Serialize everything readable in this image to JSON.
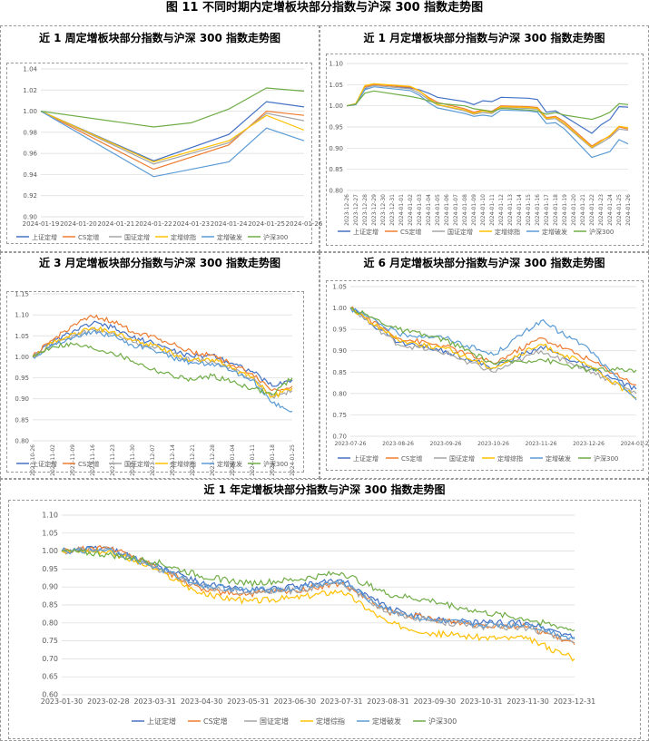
{
  "figure_title": "图 11  不同时期内定增板块部分指数与沪深 300 指数走势图",
  "colors": {
    "上证定增": "#4472C4",
    "CS定增": "#ED7D31",
    "国证定增": "#A5A5A5",
    "定增综指": "#FFC000",
    "定增破发": "#5B9BD5",
    "沪深300": "#70AD47",
    "grid": "#D9D9D9",
    "axis": "#595959"
  },
  "chart_data": [
    {
      "type": "line",
      "title": "近 1 周定增板块部分指数与沪深 300 指数走势图",
      "categories": [
        "2024-01-19",
        "2024-01-20",
        "2024-01-21",
        "2024-01-22",
        "2024-01-23",
        "2024-01-24",
        "2024-01-25",
        "2024-01-26"
      ],
      "ylim": [
        0.9,
        1.04
      ],
      "yticks": [
        "0.90",
        "0.92",
        "0.94",
        "0.96",
        "0.98",
        "1.00",
        "1.02",
        "1.04"
      ],
      "legend": [
        "上证定增",
        "CS定增",
        "国证定增",
        "定增综指",
        "定增破发",
        "沪深300"
      ],
      "series": [
        {
          "name": "上证定增",
          "values": [
            1.0,
            null,
            null,
            0.953,
            null,
            0.978,
            1.009,
            1.004
          ]
        },
        {
          "name": "CS定增",
          "values": [
            1.0,
            null,
            null,
            0.945,
            null,
            0.968,
            1.0,
            0.996
          ]
        },
        {
          "name": "国证定增",
          "values": [
            1.0,
            null,
            null,
            0.95,
            null,
            0.97,
            0.998,
            0.991
          ]
        },
        {
          "name": "定增综指",
          "values": [
            1.0,
            null,
            null,
            0.952,
            null,
            0.972,
            0.996,
            0.982
          ]
        },
        {
          "name": "定增破发",
          "values": [
            1.0,
            null,
            null,
            0.938,
            null,
            0.952,
            0.984,
            0.972
          ]
        },
        {
          "name": "沪深300",
          "values": [
            1.0,
            null,
            null,
            0.985,
            0.989,
            1.002,
            1.022,
            1.019
          ]
        }
      ]
    },
    {
      "type": "line",
      "title": "近 1 月定增板块部分指数与沪深 300 指数走势图",
      "categories": [
        "2023-12-26",
        "2023-12-27",
        "2023-12-28",
        "2023-12-29",
        "2023-12-30",
        "2023-12-31",
        "2024-01-01",
        "2024-01-02",
        "2024-01-03",
        "2024-01-04",
        "2024-01-05",
        "2024-01-06",
        "2024-01-07",
        "2024-01-08",
        "2024-01-09",
        "2024-01-10",
        "2024-01-11",
        "2024-01-12",
        "2024-01-13",
        "2024-01-14",
        "2024-01-15",
        "2024-01-16",
        "2024-01-17",
        "2024-01-18",
        "2024-01-19",
        "2024-01-20",
        "2024-01-21",
        "2024-01-22",
        "2024-01-23",
        "2024-01-24",
        "2024-01-25",
        "2024-01-26"
      ],
      "ylim": [
        0.8,
        1.1
      ],
      "yticks": [
        "0.80",
        "0.85",
        "0.90",
        "0.95",
        "1.00",
        "1.05",
        "1.10"
      ],
      "legend": [
        "上证定增",
        "CS定增",
        "国证定增",
        "定增综指",
        "定增破发",
        "沪深300"
      ],
      "series": [
        {
          "name": "上证定增",
          "values": [
            1.0,
            1.003,
            1.04,
            1.052,
            null,
            null,
            null,
            1.042,
            1.038,
            1.03,
            1.02,
            null,
            null,
            1.01,
            1.003,
            1.012,
            1.01,
            1.02,
            null,
            null,
            1.018,
            1.015,
            0.985,
            0.988,
            0.975,
            null,
            null,
            0.935,
            0.955,
            0.968,
            0.998,
            0.997
          ]
        },
        {
          "name": "CS定增",
          "values": [
            1.0,
            1.005,
            1.045,
            1.05,
            null,
            null,
            null,
            1.044,
            1.035,
            1.02,
            1.008,
            null,
            null,
            0.993,
            0.985,
            0.99,
            0.987,
            1.0,
            null,
            null,
            0.998,
            0.996,
            0.972,
            0.975,
            0.962,
            null,
            null,
            0.905,
            0.918,
            0.928,
            0.95,
            0.945
          ]
        },
        {
          "name": "国证定增",
          "values": [
            1.0,
            1.004,
            1.042,
            1.048,
            null,
            null,
            null,
            1.04,
            1.03,
            1.015,
            1.002,
            null,
            null,
            0.988,
            0.98,
            0.984,
            0.982,
            0.996,
            null,
            null,
            0.994,
            0.992,
            0.968,
            0.97,
            0.955,
            null,
            null,
            0.9,
            0.912,
            0.925,
            0.945,
            0.942
          ]
        },
        {
          "name": "定增综指",
          "values": [
            1.0,
            1.005,
            1.048,
            1.052,
            null,
            null,
            null,
            1.046,
            1.036,
            1.018,
            1.003,
            null,
            null,
            0.99,
            0.982,
            0.988,
            0.984,
            0.998,
            null,
            null,
            0.996,
            0.994,
            0.97,
            0.973,
            0.958,
            null,
            null,
            0.902,
            0.916,
            0.93,
            0.952,
            0.948
          ]
        },
        {
          "name": "定增破发",
          "values": [
            1.0,
            1.003,
            1.038,
            1.045,
            null,
            null,
            null,
            1.036,
            1.025,
            1.008,
            0.995,
            null,
            null,
            0.982,
            0.975,
            0.978,
            0.975,
            0.99,
            null,
            null,
            0.988,
            0.985,
            0.958,
            0.96,
            0.945,
            null,
            null,
            0.878,
            0.885,
            0.892,
            0.92,
            0.91
          ]
        },
        {
          "name": "沪深300",
          "values": [
            1.0,
            1.004,
            1.03,
            1.035,
            null,
            null,
            null,
            1.022,
            1.018,
            1.012,
            1.006,
            null,
            null,
            1.0,
            0.993,
            0.99,
            0.986,
            0.994,
            null,
            null,
            0.99,
            0.988,
            0.98,
            0.984,
            0.978,
            null,
            null,
            0.968,
            0.975,
            0.985,
            1.005,
            1.003
          ]
        }
      ]
    },
    {
      "type": "line",
      "title": "近 3 月定增板块部分指数与沪深 300 指数走势图",
      "categories": [
        "2023-10-26",
        "2023-11-02",
        "2023-11-09",
        "2023-11-16",
        "2023-11-23",
        "2023-11-30",
        "2023-12-07",
        "2023-12-14",
        "2023-12-21",
        "2023-12-28",
        "2024-01-04",
        "2024-01-11",
        "2024-01-18",
        "2024-01-25"
      ],
      "ylim": [
        0.8,
        1.15
      ],
      "yticks": [
        "0.80",
        "0.85",
        "0.90",
        "0.95",
        "1.00",
        "1.05",
        "1.10",
        "1.15"
      ],
      "legend": [
        "上证定增",
        "CS定增",
        "国证定增",
        "定增综指",
        "定增破发",
        "沪深300"
      ],
      "series": [
        {
          "name": "上证定增",
          "values": [
            1.0,
            1.035,
            1.06,
            1.08,
            1.07,
            1.045,
            1.035,
            1.015,
            1.0,
            1.005,
            0.985,
            0.965,
            0.93,
            0.945
          ]
        },
        {
          "name": "CS定增",
          "values": [
            1.0,
            1.04,
            1.075,
            1.095,
            1.085,
            1.06,
            1.05,
            1.03,
            1.01,
            1.005,
            0.98,
            0.96,
            0.92,
            0.93
          ]
        },
        {
          "name": "国证定增",
          "values": [
            1.0,
            1.03,
            1.05,
            1.065,
            1.058,
            1.035,
            1.025,
            1.005,
            0.99,
            0.99,
            0.97,
            0.95,
            0.905,
            0.92
          ]
        },
        {
          "name": "定增综指",
          "values": [
            1.0,
            1.032,
            1.055,
            1.07,
            1.06,
            1.038,
            1.028,
            1.008,
            0.992,
            0.994,
            0.972,
            0.952,
            0.905,
            0.925
          ]
        },
        {
          "name": "定增破发",
          "values": [
            1.0,
            1.028,
            1.045,
            1.06,
            1.05,
            1.028,
            1.018,
            0.998,
            0.985,
            0.985,
            0.965,
            0.945,
            0.89,
            0.87
          ]
        },
        {
          "name": "沪深300",
          "values": [
            1.0,
            1.025,
            1.03,
            1.02,
            1.01,
            0.99,
            0.97,
            0.955,
            0.945,
            0.955,
            0.94,
            0.925,
            0.91,
            0.95
          ]
        }
      ]
    },
    {
      "type": "line",
      "title": "近 6 月定增板块部分指数与沪深 300 指数走势图",
      "categories": [
        "2023-07-26",
        "2023-08-26",
        "2023-09-26",
        "2023-10-26",
        "2023-11-26",
        "2023-12-26",
        "2024-01-26"
      ],
      "ylim": [
        0.7,
        1.05
      ],
      "yticks": [
        "0.70",
        "0.75",
        "0.80",
        "0.85",
        "0.90",
        "0.95",
        "1.00",
        "1.05"
      ],
      "legend": [
        "上证定增",
        "CS定增",
        "国证定增",
        "定增综指",
        "定增破发",
        "沪深300"
      ],
      "series": [
        {
          "name": "上证定增",
          "values": [
            1.0,
            0.92,
            0.9,
            0.86,
            0.91,
            0.86,
            0.81
          ]
        },
        {
          "name": "CS定增",
          "values": [
            1.0,
            0.93,
            0.91,
            0.87,
            0.93,
            0.88,
            0.82
          ]
        },
        {
          "name": "国证定增",
          "values": [
            1.0,
            0.915,
            0.895,
            0.85,
            0.9,
            0.855,
            0.8
          ]
        },
        {
          "name": "定增综指",
          "values": [
            1.0,
            0.925,
            0.905,
            0.86,
            0.915,
            0.865,
            0.79
          ]
        },
        {
          "name": "定增破发",
          "values": [
            1.0,
            0.94,
            0.93,
            0.89,
            0.97,
            0.905,
            0.785
          ]
        },
        {
          "name": "沪深300",
          "values": [
            1.0,
            0.95,
            0.925,
            0.87,
            0.88,
            0.855,
            0.855
          ]
        }
      ]
    },
    {
      "type": "line",
      "title": "近 1 年定增板块部分指数与沪深 300 指数走势图",
      "categories": [
        "2023-01-30",
        "2023-02-28",
        "2023-03-31",
        "2023-04-30",
        "2023-05-31",
        "2023-06-30",
        "2023-07-31",
        "2023-08-31",
        "2023-09-30",
        "2023-10-31",
        "2023-11-30",
        "2023-12-31"
      ],
      "ylim": [
        0.6,
        1.1
      ],
      "yticks": [
        "0.60",
        "0.65",
        "0.70",
        "0.75",
        "0.80",
        "0.85",
        "0.90",
        "0.95",
        "1.00",
        "1.05",
        "1.10"
      ],
      "legend": [
        "上证定增",
        "CS定增",
        "国证定增",
        "定增综指",
        "定增破发",
        "沪深300"
      ],
      "series": [
        {
          "name": "上证定增",
          "values": [
            1.0,
            1.01,
            0.96,
            0.91,
            0.89,
            0.9,
            0.92,
            0.84,
            0.81,
            0.8,
            0.8,
            0.76
          ]
        },
        {
          "name": "CS定增",
          "values": [
            1.0,
            1.01,
            0.96,
            0.89,
            0.88,
            0.89,
            0.91,
            0.83,
            0.81,
            0.795,
            0.79,
            0.74
          ]
        },
        {
          "name": "国证定增",
          "values": [
            1.0,
            1.005,
            0.955,
            0.9,
            0.885,
            0.89,
            0.91,
            0.83,
            0.805,
            0.79,
            0.785,
            0.745
          ]
        },
        {
          "name": "定增综指",
          "values": [
            1.0,
            1.0,
            0.95,
            0.88,
            0.86,
            0.87,
            0.89,
            0.8,
            0.77,
            0.76,
            0.755,
            0.7
          ]
        },
        {
          "name": "定增破发",
          "values": [
            1.0,
            1.005,
            0.955,
            0.905,
            0.89,
            0.895,
            0.915,
            0.835,
            0.805,
            0.795,
            0.795,
            0.755
          ]
        },
        {
          "name": "沪深300",
          "values": [
            1.0,
            0.99,
            0.97,
            0.93,
            0.91,
            0.92,
            0.94,
            0.88,
            0.86,
            0.83,
            0.81,
            0.78
          ]
        }
      ]
    }
  ]
}
